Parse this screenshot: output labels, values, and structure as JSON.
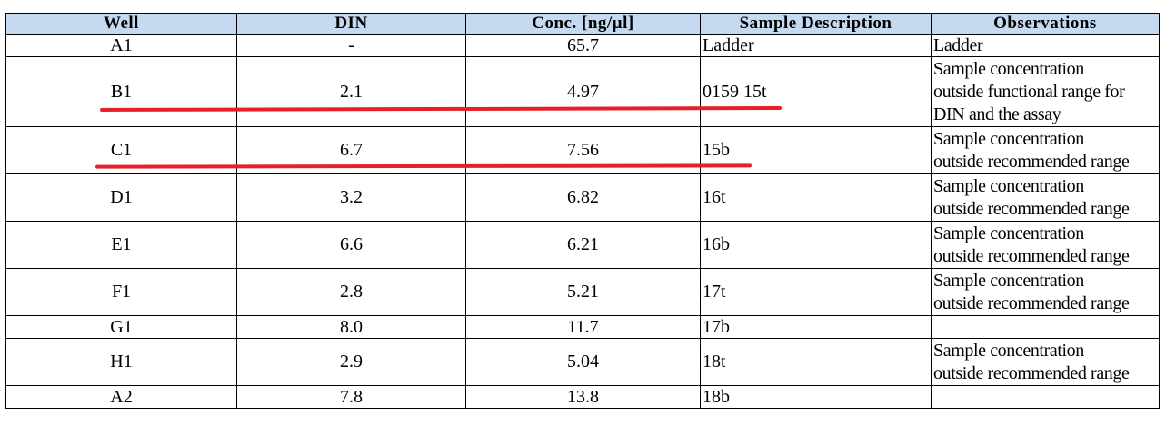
{
  "columns": [
    "Well",
    "DIN",
    "Conc. [ng/µl]",
    "Sample Description",
    "Observations"
  ],
  "rows": [
    {
      "well": "A1",
      "din": "-",
      "conc": "65.7",
      "desc": "Ladder",
      "obs": [
        "Ladder"
      ]
    },
    {
      "well": "B1",
      "din": "2.1",
      "conc": "4.97",
      "desc": "0159 15t",
      "obs": [
        "Sample concentration",
        "outside functional range for",
        "DIN and the assay"
      ]
    },
    {
      "well": "C1",
      "din": "6.7",
      "conc": "7.56",
      "desc": "15b",
      "obs": [
        "Sample concentration",
        "outside recommended range"
      ]
    },
    {
      "well": "D1",
      "din": "3.2",
      "conc": "6.82",
      "desc": "16t",
      "obs": [
        "Sample concentration",
        "outside recommended range"
      ]
    },
    {
      "well": "E1",
      "din": "6.6",
      "conc": "6.21",
      "desc": "16b",
      "obs": [
        "Sample concentration",
        "outside recommended range"
      ]
    },
    {
      "well": "F1",
      "din": "2.8",
      "conc": "5.21",
      "desc": "17t",
      "obs": [
        "Sample concentration",
        "outside recommended range"
      ]
    },
    {
      "well": "G1",
      "din": "8.0",
      "conc": "11.7",
      "desc": "17b",
      "obs": []
    },
    {
      "well": "H1",
      "din": "2.9",
      "conc": "5.04",
      "desc": "18t",
      "obs": [
        "Sample concentration",
        "outside recommended range"
      ]
    },
    {
      "well": "A2",
      "din": "7.8",
      "conc": "13.8",
      "desc": "18b",
      "obs": []
    }
  ],
  "colors": {
    "header_bg": "#c5d9f1",
    "annotation_red": "#e8202a"
  }
}
